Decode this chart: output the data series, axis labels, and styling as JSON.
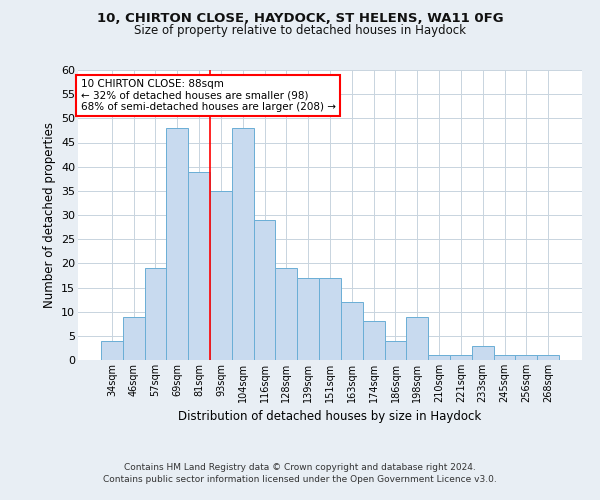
{
  "title_line1": "10, CHIRTON CLOSE, HAYDOCK, ST HELENS, WA11 0FG",
  "title_line2": "Size of property relative to detached houses in Haydock",
  "xlabel": "Distribution of detached houses by size in Haydock",
  "ylabel": "Number of detached properties",
  "bar_color": "#c8daef",
  "bar_edge_color": "#6aaed6",
  "categories": [
    "34sqm",
    "46sqm",
    "57sqm",
    "69sqm",
    "81sqm",
    "93sqm",
    "104sqm",
    "116sqm",
    "128sqm",
    "139sqm",
    "151sqm",
    "163sqm",
    "174sqm",
    "186sqm",
    "198sqm",
    "210sqm",
    "221sqm",
    "233sqm",
    "245sqm",
    "256sqm",
    "268sqm"
  ],
  "values": [
    4,
    9,
    19,
    48,
    39,
    35,
    48,
    29,
    19,
    17,
    17,
    12,
    8,
    4,
    9,
    1,
    1,
    3,
    1,
    1,
    1
  ],
  "ylim": [
    0,
    60
  ],
  "yticks": [
    0,
    5,
    10,
    15,
    20,
    25,
    30,
    35,
    40,
    45,
    50,
    55,
    60
  ],
  "property_line_x": 4.5,
  "annotation_text": "10 CHIRTON CLOSE: 88sqm\n← 32% of detached houses are smaller (98)\n68% of semi-detached houses are larger (208) →",
  "footnote1": "Contains HM Land Registry data © Crown copyright and database right 2024.",
  "footnote2": "Contains public sector information licensed under the Open Government Licence v3.0.",
  "background_color": "#e8eef4",
  "plot_bg_color": "#ffffff",
  "grid_color": "#c8d4de"
}
